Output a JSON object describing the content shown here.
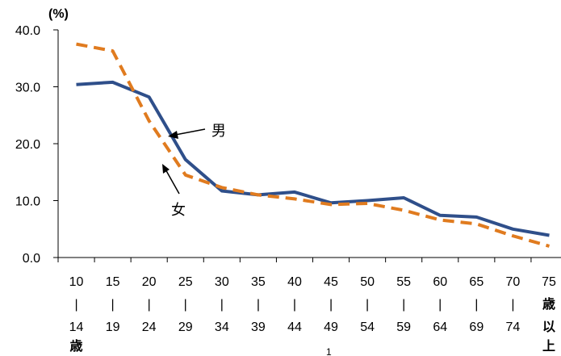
{
  "chart_data": {
    "type": "line",
    "unit_label": "(%)",
    "ylim": [
      0,
      40
    ],
    "yticks": [
      "0.0",
      "10.0",
      "20.0",
      "30.0",
      "40.0"
    ],
    "categories": [
      [
        "10",
        "|",
        "14",
        "歳"
      ],
      [
        "15",
        "|",
        "19"
      ],
      [
        "20",
        "|",
        "24"
      ],
      [
        "25",
        "|",
        "29"
      ],
      [
        "30",
        "|",
        "34"
      ],
      [
        "35",
        "|",
        "39"
      ],
      [
        "40",
        "|",
        "44"
      ],
      [
        "45",
        "|",
        "49"
      ],
      [
        "50",
        "|",
        "54"
      ],
      [
        "55",
        "|",
        "59"
      ],
      [
        "60",
        "|",
        "64"
      ],
      [
        "65",
        "|",
        "69"
      ],
      [
        "70",
        "|",
        "74"
      ],
      [
        "75",
        "歳",
        "以",
        "上"
      ]
    ],
    "series": [
      {
        "name": "男",
        "color": "#2f4f8a",
        "style": "solid",
        "values": [
          30.4,
          30.8,
          28.2,
          17.2,
          11.7,
          11.0,
          11.5,
          9.6,
          10.0,
          10.5,
          7.4,
          7.1,
          5.0,
          3.9
        ]
      },
      {
        "name": "女",
        "color": "#e07b1f",
        "style": "dashed",
        "values": [
          37.5,
          36.3,
          24.0,
          14.5,
          12.3,
          11.0,
          10.3,
          9.3,
          9.5,
          8.3,
          6.6,
          5.9,
          3.8,
          2.0
        ]
      }
    ],
    "footnote": "1",
    "grid": false
  }
}
